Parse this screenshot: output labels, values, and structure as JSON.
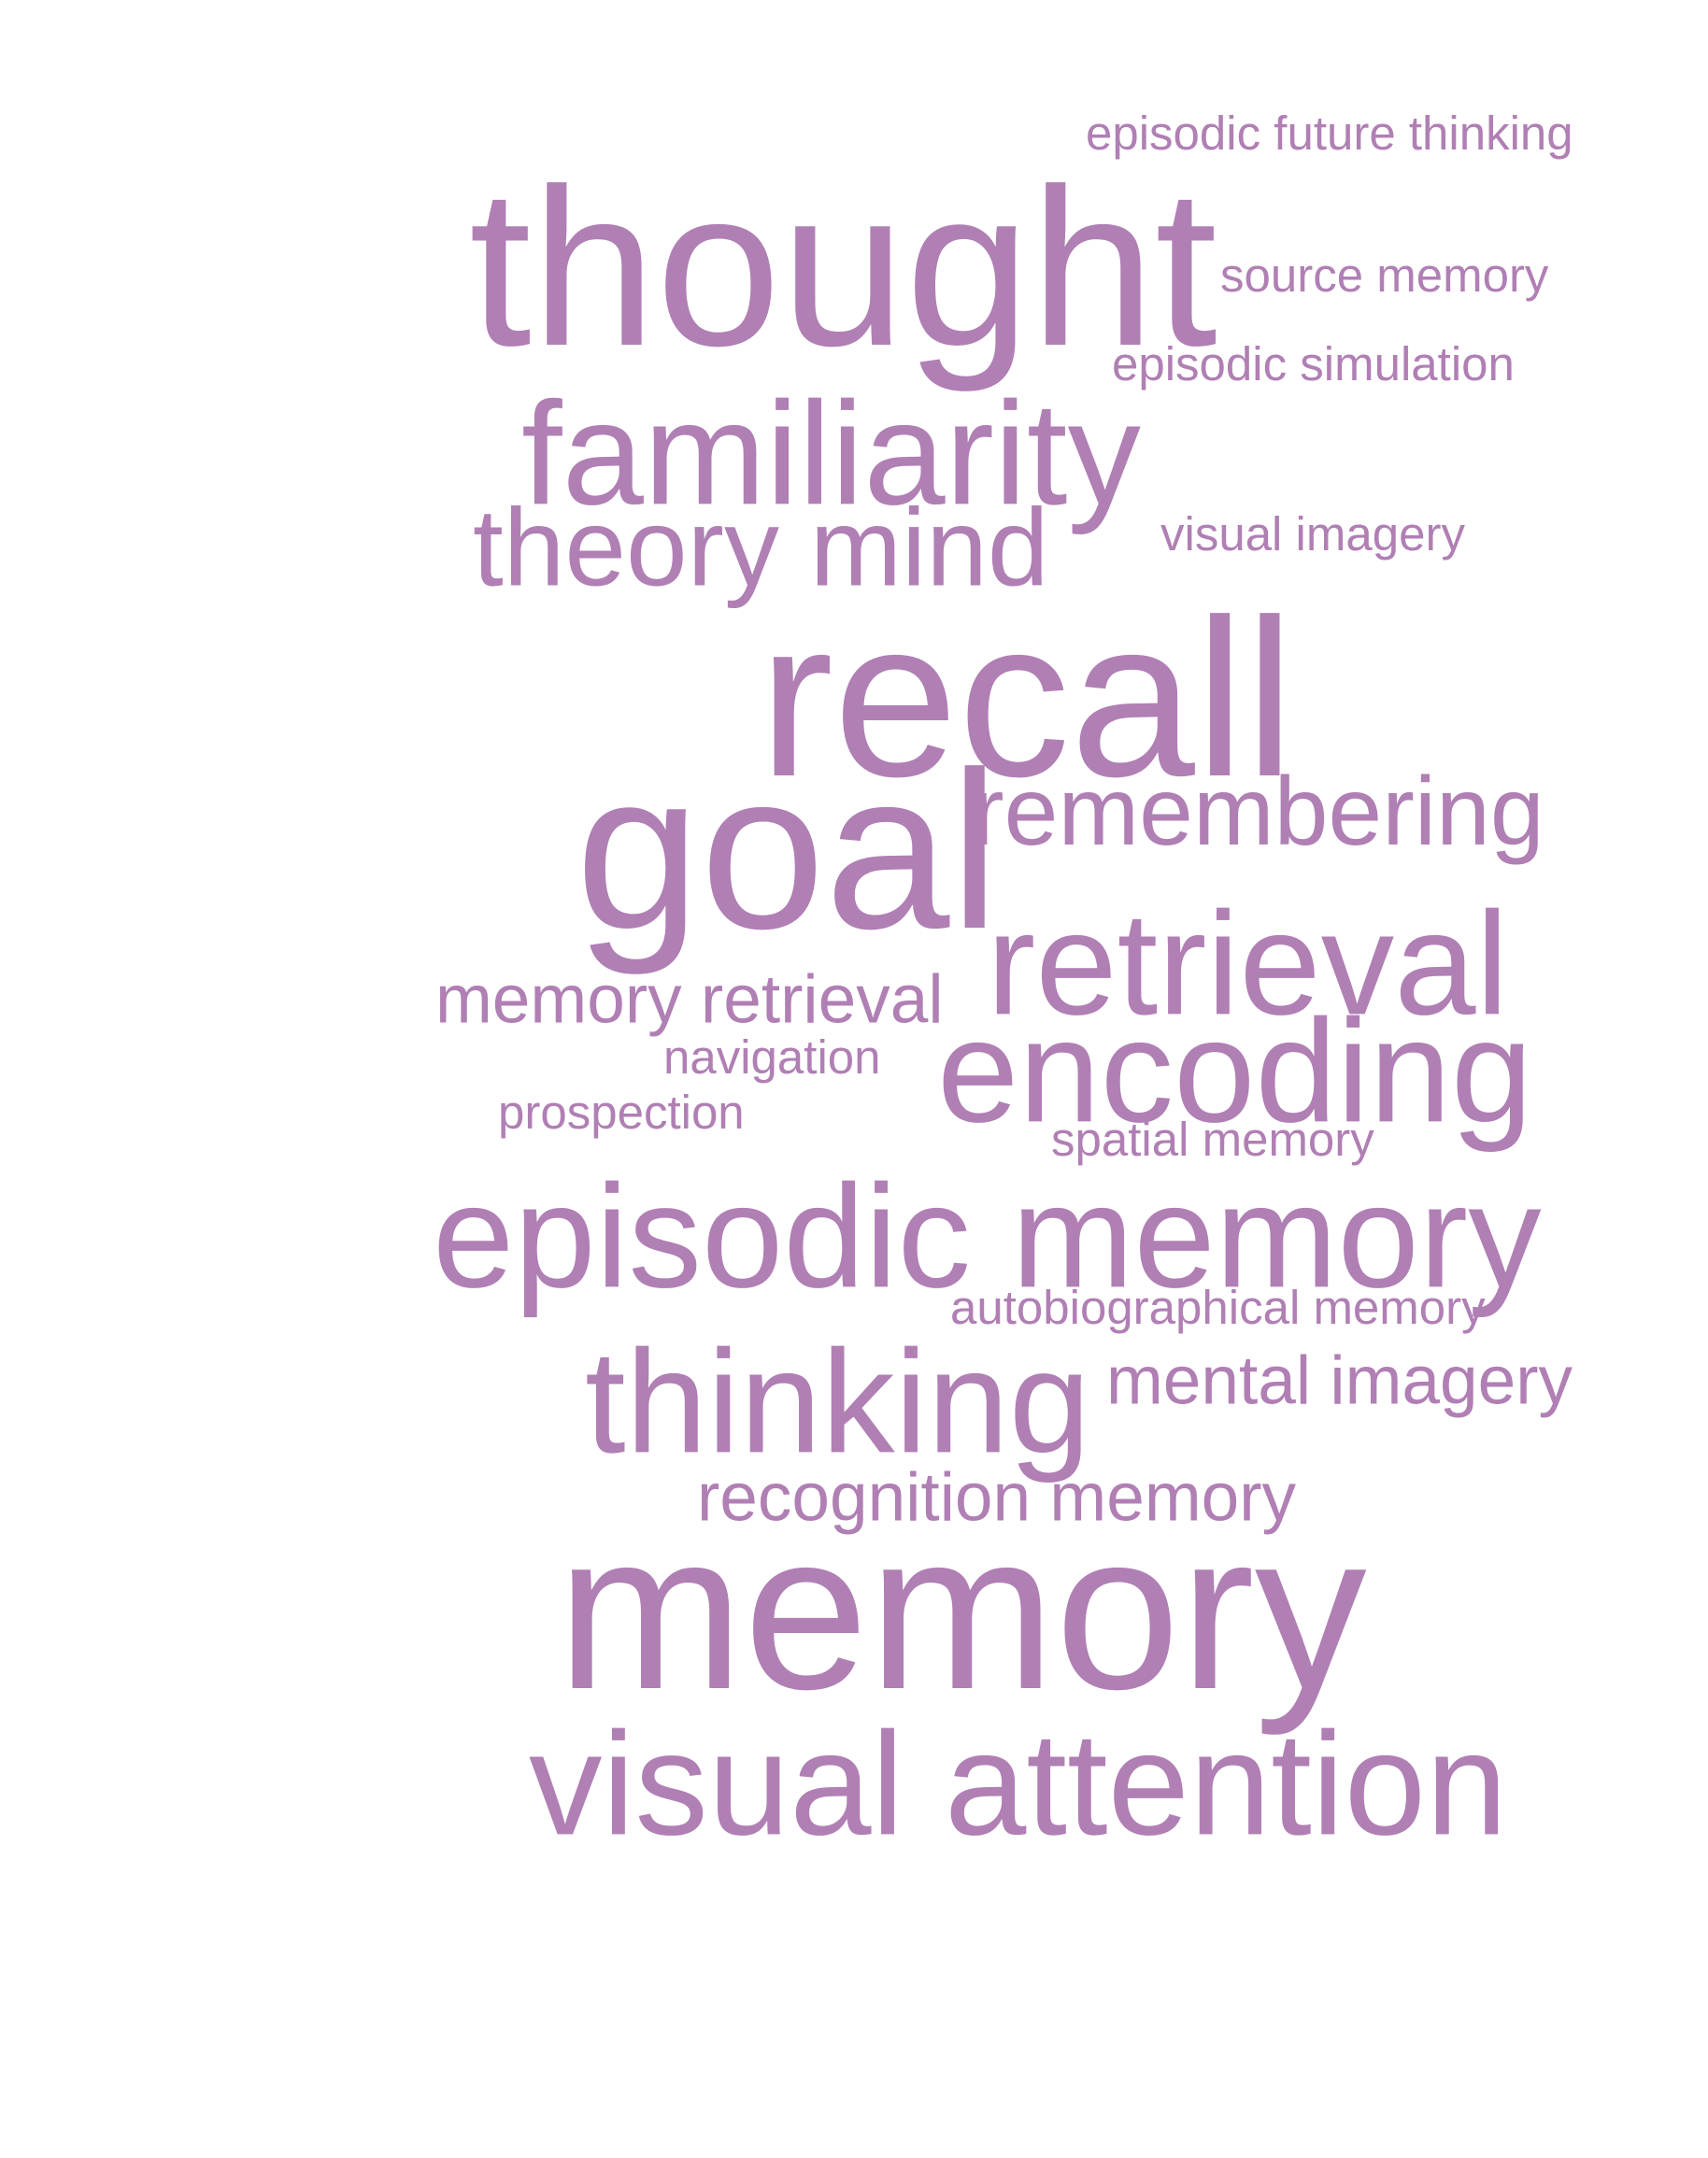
{
  "accent_color": "#b07fb4",
  "words": {
    "episodic_future_thinking": "episodic future thinking",
    "thought": "thought",
    "source_memory": "source memory",
    "episodic_simulation": "episodic simulation",
    "familiarity": "familiarity",
    "theory_mind": "theory mind",
    "visual_imagery": "visual imagery",
    "recall": "recall",
    "remembering": "remembering",
    "goal": "goal",
    "retrieval": "retrieval",
    "memory_retrieval": "memory retrieval",
    "navigation": "navigation",
    "encoding": "encoding",
    "prospection": "prospection",
    "spatial_memory": "spatial memory",
    "episodic_memory": "episodic memory",
    "autobiographical_memory": "autobiographical memory",
    "thinking": "thinking",
    "mental_imagery": "mental imagery",
    "recognition_memory": "recognition memory",
    "memory": "memory",
    "visual_attention": "visual attention"
  }
}
